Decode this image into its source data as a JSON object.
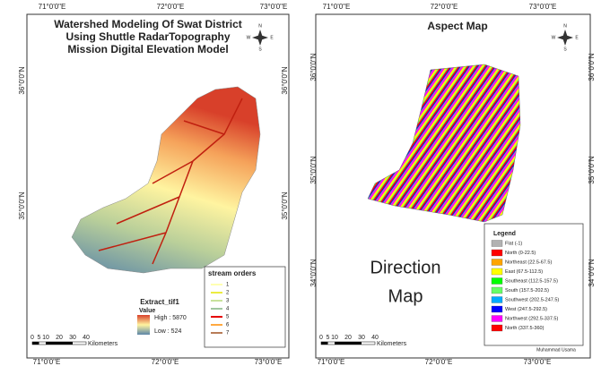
{
  "left_map": {
    "title": [
      "Watershed Modeling Of Swat District",
      "Using Shuttle RadarTopography",
      "Mission Digital Elevation Model"
    ],
    "top_ticks": [
      "71°0'0\"E",
      "72°0'0\"E",
      "73°0'0\"E"
    ],
    "bottom_ticks": [
      "71°0'0\"E",
      "72°0'0\"E",
      "73°0'0\"E"
    ],
    "left_ticks": [
      "36°0'0\"N",
      "35°0'0\"N"
    ],
    "right_ticks": [
      "36°0'0\"N",
      "35°0'0\"N"
    ],
    "north_arrow": [
      "N",
      "E",
      "S",
      "W"
    ],
    "raster_legend": {
      "title": "Extract_tif1",
      "subtitle": "Value",
      "high": "High : 5870",
      "low": "Low : 524"
    },
    "stream_legend": {
      "title": "stream orders",
      "items": [
        {
          "label": "1",
          "color": "#ffff99"
        },
        {
          "label": "2",
          "color": "#e6e600"
        },
        {
          "label": "3",
          "color": "#b5d97a"
        },
        {
          "label": "4",
          "color": "#7fb27f"
        },
        {
          "label": "5",
          "color": "#e60000"
        },
        {
          "label": "6",
          "color": "#ff8c00"
        },
        {
          "label": "7",
          "color": "#a05020"
        }
      ]
    },
    "scale_bar": {
      "ticks": [
        "0",
        "5",
        "10",
        "20",
        "30",
        "40"
      ],
      "unit": "Kilometers"
    }
  },
  "right_map": {
    "title": "Aspect Map",
    "top_ticks": [
      "71°0'0\"E",
      "72°0'0\"E",
      "73°0'0\"E"
    ],
    "bottom_ticks": [
      "71°0'0\"E",
      "72°0'0\"E",
      "73°0'0\"E"
    ],
    "left_ticks": [
      "36°0'0\"N",
      "35°0'0\"N",
      "34°0'0\"N"
    ],
    "right_ticks": [
      "36°0'0\"N",
      "35°0'0\"N",
      "34°0'0\"N"
    ],
    "north_arrow": [
      "N",
      "E",
      "S",
      "W"
    ],
    "annotation": [
      "Direction",
      "Map"
    ],
    "legend": {
      "title": "Legend",
      "items": [
        {
          "label": "Flat (-1)",
          "color": "#b2b2b2"
        },
        {
          "label": "North (0-22.5)",
          "color": "#ff0000"
        },
        {
          "label": "Northeast (22.5-67.5)",
          "color": "#ffa500"
        },
        {
          "label": "East (67.5-112.5)",
          "color": "#ffff00"
        },
        {
          "label": "Southeast (112.5-157.5)",
          "color": "#00ff00"
        },
        {
          "label": "South (157.5-202.5)",
          "color": "#66ff66"
        },
        {
          "label": "Southwest (202.5-247.5)",
          "color": "#00aaff"
        },
        {
          "label": "West (247.5-292.5)",
          "color": "#0000ff"
        },
        {
          "label": "Northwest (292.5-337.5)",
          "color": "#ff00ff"
        },
        {
          "label": "North (337.5-360)",
          "color": "#ff0000"
        }
      ]
    },
    "author": "Muhammad Usama",
    "scale_bar": {
      "ticks": [
        "0",
        "5",
        "10",
        "20",
        "30",
        "40"
      ],
      "unit": "Kilometers"
    }
  }
}
